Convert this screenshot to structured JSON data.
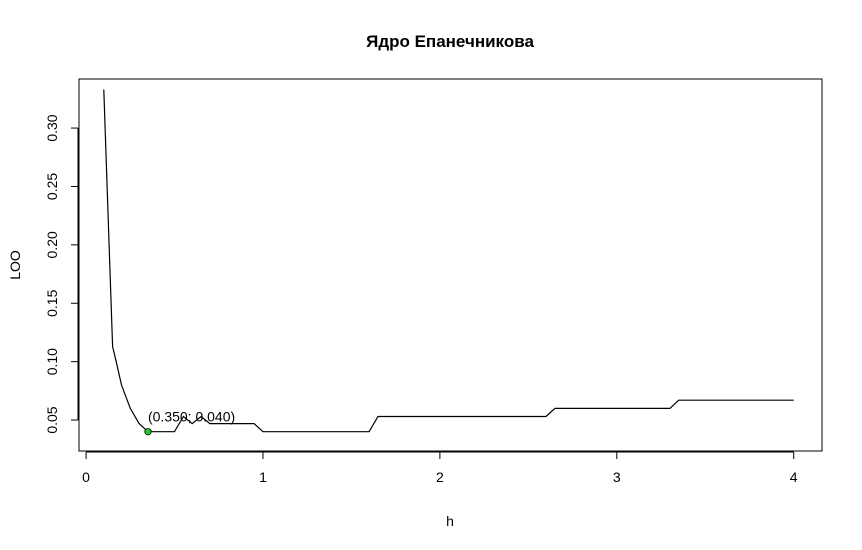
{
  "chart_data": {
    "type": "line",
    "title": "Ядро Епанечникова",
    "xlabel": "h",
    "ylabel": "LOO",
    "xlim": [
      -0.04,
      4.16
    ],
    "ylim": [
      0.0235,
      0.342
    ],
    "xticks": [
      0,
      1,
      2,
      3,
      4
    ],
    "xtick_labels": [
      "0",
      "1",
      "2",
      "3",
      "4"
    ],
    "yticks": [
      0.05,
      0.1,
      0.15,
      0.2,
      0.25,
      0.3
    ],
    "ytick_labels": [
      "0.05",
      "0.10",
      "0.15",
      "0.20",
      "0.25",
      "0.30"
    ],
    "grid": false,
    "legend": "none",
    "series": [
      {
        "color": "#000000",
        "x": [
          0.1,
          0.13,
          0.15,
          0.17,
          0.2,
          0.25,
          0.3,
          0.35,
          0.4,
          0.45,
          0.5,
          0.55,
          0.6,
          0.65,
          0.7,
          0.75,
          0.8,
          0.85,
          0.9,
          0.95,
          1.0,
          1.05,
          1.6,
          1.65,
          2.6,
          2.65,
          3.3,
          3.35,
          4.0
        ],
        "y": [
          0.333,
          0.2,
          0.113,
          0.1,
          0.08,
          0.06,
          0.047,
          0.04,
          0.04,
          0.04,
          0.04,
          0.053,
          0.047,
          0.053,
          0.047,
          0.047,
          0.047,
          0.047,
          0.047,
          0.047,
          0.04,
          0.04,
          0.04,
          0.053,
          0.053,
          0.06,
          0.06,
          0.067,
          0.067
        ]
      }
    ],
    "marker": {
      "x": 0.35,
      "y": 0.04,
      "color": "#22cc22"
    },
    "annotation": {
      "text": "(0.350; 0.040)",
      "x": 0.35,
      "y": 0.04
    }
  }
}
